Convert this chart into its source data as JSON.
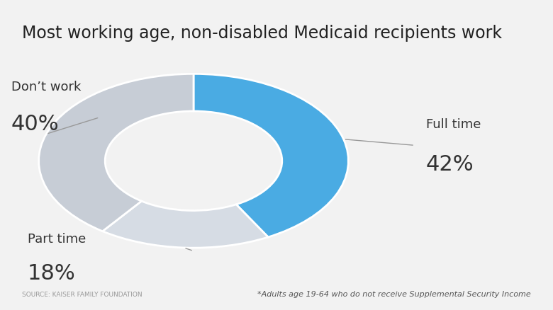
{
  "title": "Most working age, non-disabled Medicaid recipients work",
  "slices": [
    42,
    18,
    40
  ],
  "labels": [
    "Full time",
    "Part time",
    "Don’t work"
  ],
  "percentages": [
    "42%",
    "18%",
    "40%"
  ],
  "colors": [
    "#4AABE3",
    "#D6DCE4",
    "#C7CDD6"
  ],
  "background_color": "#F2F2F2",
  "source_text": "SOURCE: KAISER FAMILY FOUNDATION",
  "footnote_text": "*Adults age 19-64 who do not receive Supplemental Security Income",
  "start_angle": 90,
  "donut_width": 0.38,
  "annotation_line_color": "#999999"
}
